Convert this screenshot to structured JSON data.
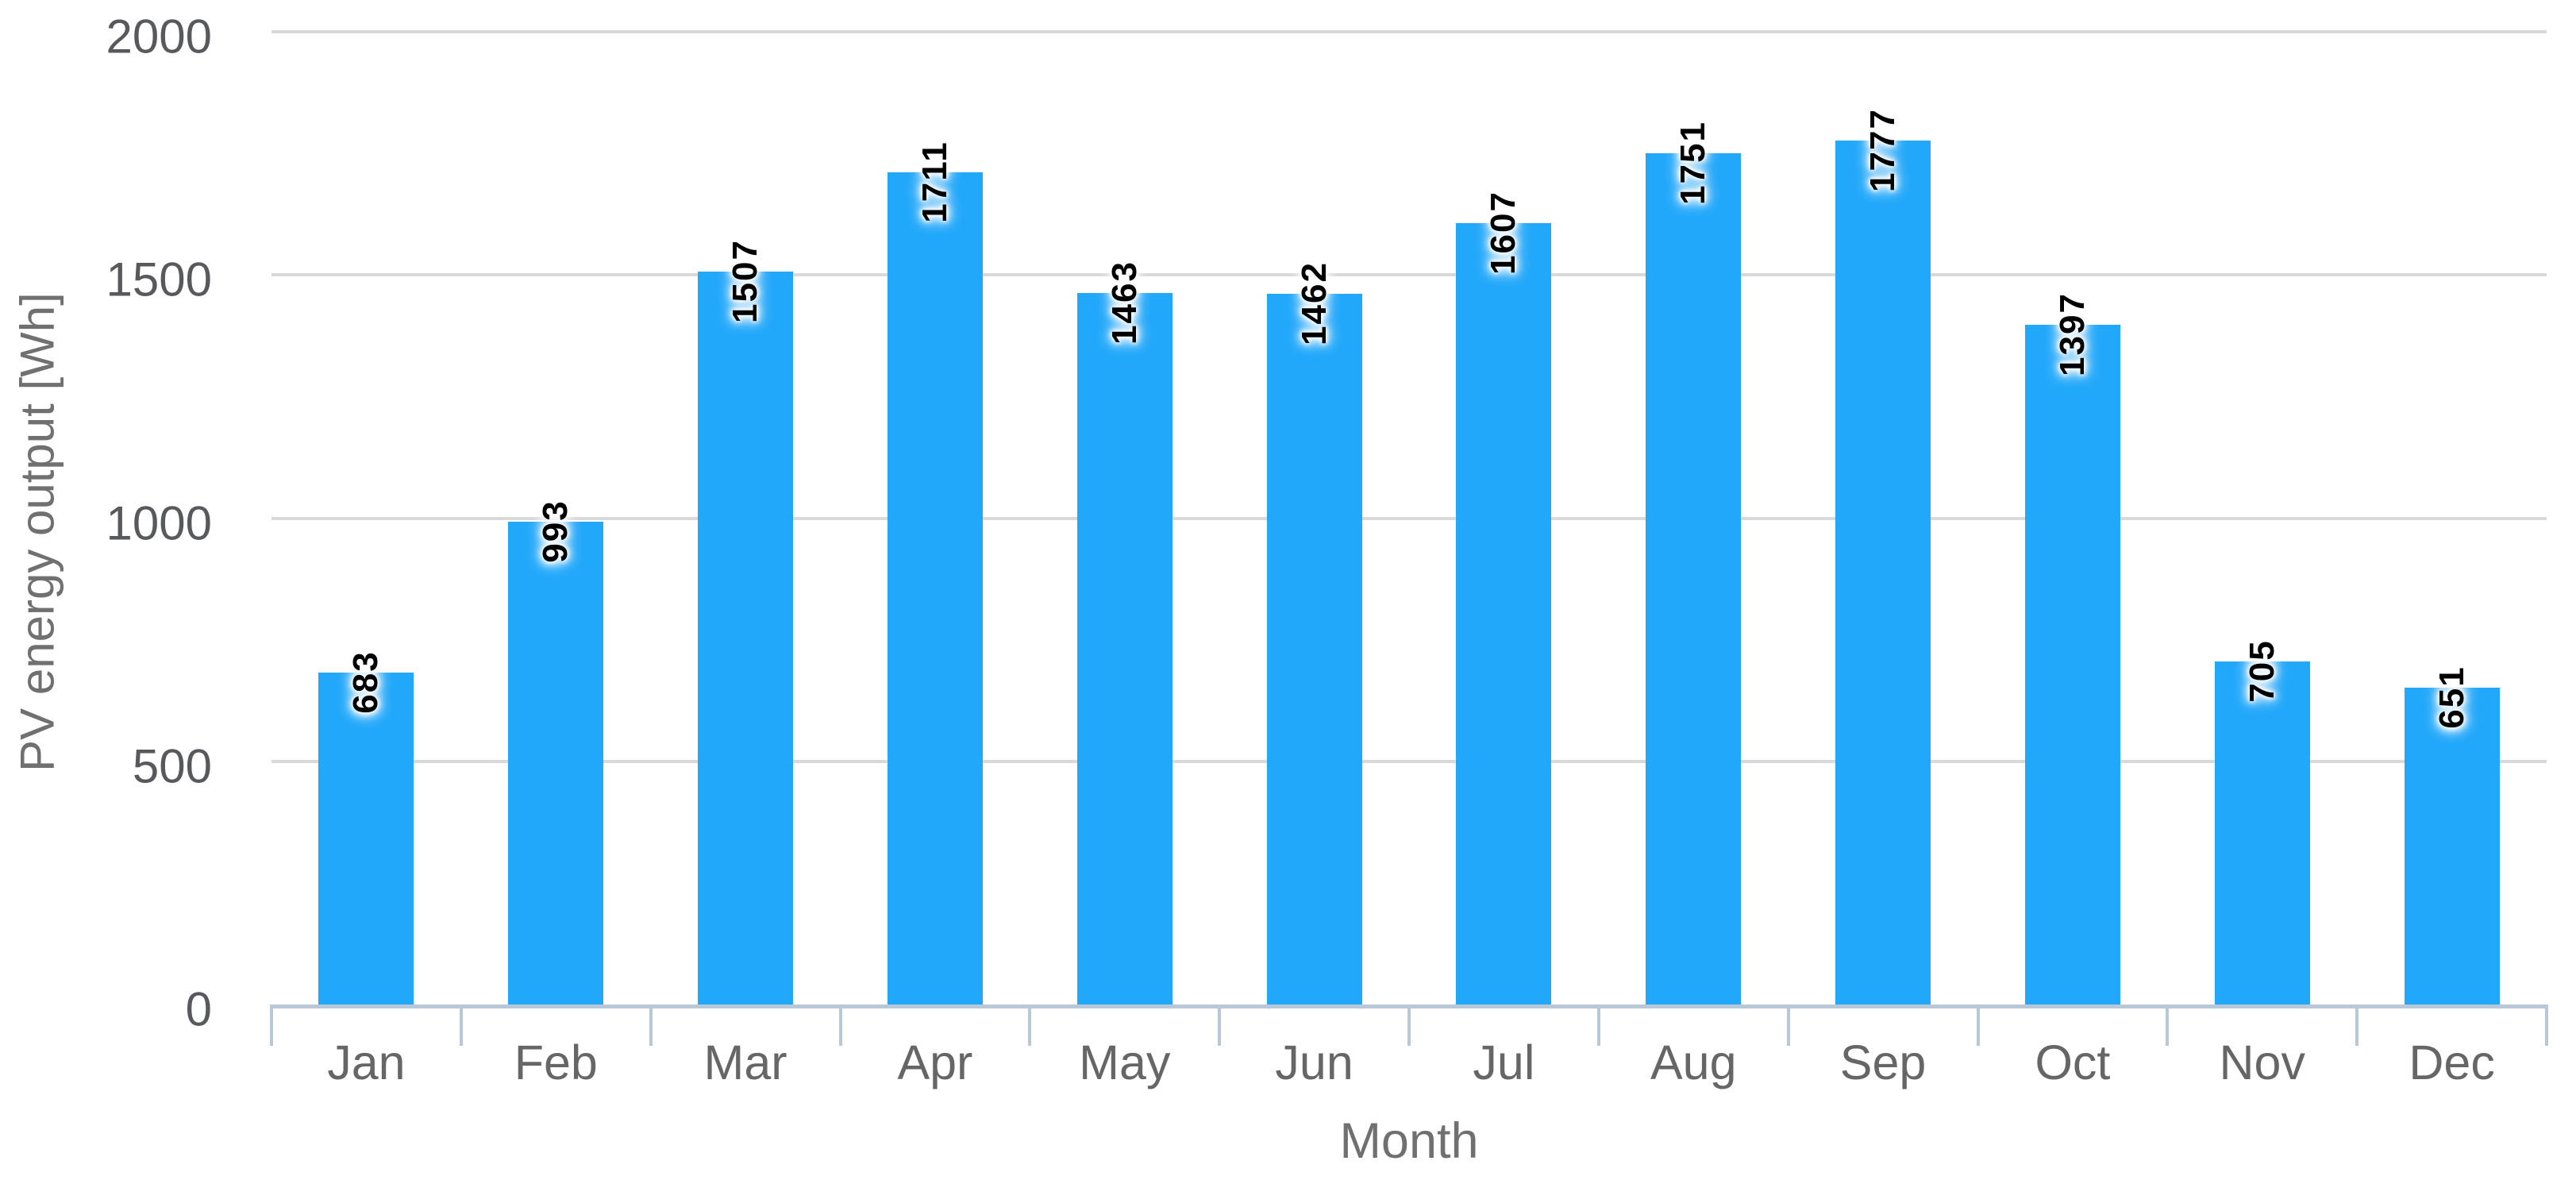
{
  "chart_data": {
    "type": "bar",
    "title": "",
    "xlabel": "Month",
    "ylabel": "PV energy output [Wh]",
    "categories": [
      "Jan",
      "Feb",
      "Mar",
      "Apr",
      "May",
      "Jun",
      "Jul",
      "Aug",
      "Sep",
      "Oct",
      "Nov",
      "Dec"
    ],
    "values": [
      683,
      993,
      1507,
      1711,
      1463,
      1462,
      1607,
      1751,
      1777,
      1397,
      705,
      651
    ],
    "value_labels_rotated": true,
    "y_ticks": [
      0,
      500,
      1000,
      1500,
      2000
    ],
    "ylim": [
      0,
      2000
    ],
    "grid": "horizontal",
    "legend": "none",
    "colors": {
      "bar": "#21a8fa",
      "gridline": "#d9d9d9",
      "axis_line": "#b9c8d9",
      "y_tick_label": "#58595c",
      "month_label": "#666666",
      "axis_title": "#707070",
      "value_label": "#000000",
      "background": "#ffffff"
    }
  }
}
